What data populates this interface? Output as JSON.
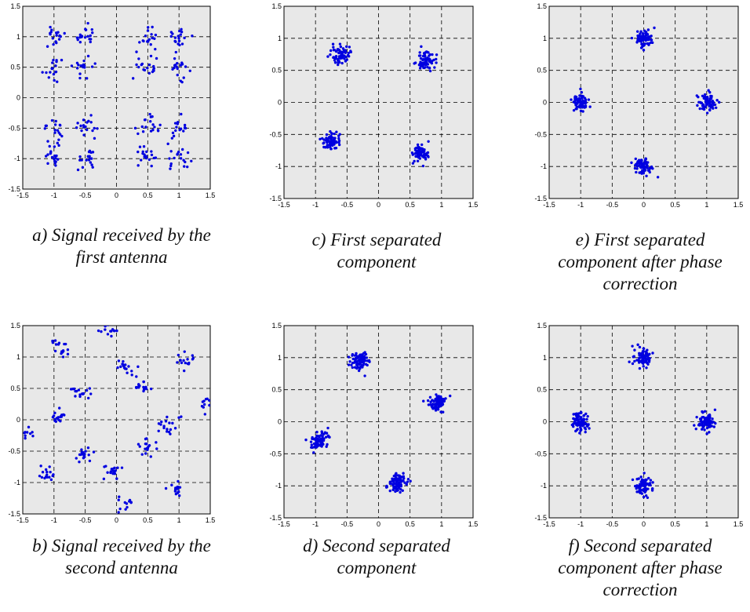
{
  "chart_data": [
    {
      "id": "a",
      "type": "scatter",
      "caption_lines": [
        "a) Signal received by the",
        "first antenna"
      ],
      "xlim": [
        -1.5,
        1.5
      ],
      "ylim": [
        -1.5,
        1.5
      ],
      "xticks": [
        "-1.5",
        "-1",
        "-0.5",
        "0",
        "0.5",
        "1",
        "1.5"
      ],
      "yticks": [
        "-1.5",
        "-1",
        "-0.5",
        "0",
        "0.5",
        "1",
        "1.5"
      ],
      "grid": true,
      "point_color": "#0000e0",
      "background": "#e8e8e8",
      "clusters": [
        {
          "cx": -1.0,
          "cy": 1.0,
          "n": 18,
          "sd": 0.09
        },
        {
          "cx": -0.5,
          "cy": 1.0,
          "n": 18,
          "sd": 0.09
        },
        {
          "cx": 0.5,
          "cy": 1.0,
          "n": 18,
          "sd": 0.09
        },
        {
          "cx": 1.0,
          "cy": 1.0,
          "n": 18,
          "sd": 0.09
        },
        {
          "cx": -1.0,
          "cy": 0.5,
          "n": 18,
          "sd": 0.09
        },
        {
          "cx": -0.5,
          "cy": 0.5,
          "n": 18,
          "sd": 0.09
        },
        {
          "cx": 0.5,
          "cy": 0.5,
          "n": 18,
          "sd": 0.09
        },
        {
          "cx": 1.0,
          "cy": 0.5,
          "n": 18,
          "sd": 0.09
        },
        {
          "cx": -1.0,
          "cy": -0.5,
          "n": 18,
          "sd": 0.09
        },
        {
          "cx": -0.5,
          "cy": -0.5,
          "n": 18,
          "sd": 0.09
        },
        {
          "cx": 0.5,
          "cy": -0.5,
          "n": 18,
          "sd": 0.09
        },
        {
          "cx": 1.0,
          "cy": -0.5,
          "n": 18,
          "sd": 0.09
        },
        {
          "cx": -1.0,
          "cy": -1.0,
          "n": 18,
          "sd": 0.09
        },
        {
          "cx": -0.5,
          "cy": -1.0,
          "n": 18,
          "sd": 0.09
        },
        {
          "cx": 0.5,
          "cy": -1.0,
          "n": 18,
          "sd": 0.09
        },
        {
          "cx": 1.0,
          "cy": -1.0,
          "n": 18,
          "sd": 0.09
        }
      ]
    },
    {
      "id": "c",
      "type": "scatter",
      "caption_lines": [
        "c) First separated",
        "component"
      ],
      "xlim": [
        -1.5,
        1.5
      ],
      "ylim": [
        -1.5,
        1.5
      ],
      "xticks": [
        "-1.5",
        "-1",
        "-0.5",
        "0",
        "0.5",
        "1",
        "1.5"
      ],
      "yticks": [
        "-1.5",
        "-1",
        "-0.5",
        "0",
        "0.5",
        "1",
        "1.5"
      ],
      "grid": true,
      "point_color": "#0000e0",
      "background": "#e8e8e8",
      "clusters": [
        {
          "cx": -0.6,
          "cy": 0.75,
          "n": 70,
          "sd": 0.07
        },
        {
          "cx": 0.75,
          "cy": 0.65,
          "n": 70,
          "sd": 0.07
        },
        {
          "cx": -0.75,
          "cy": -0.6,
          "n": 70,
          "sd": 0.07
        },
        {
          "cx": 0.65,
          "cy": -0.78,
          "n": 70,
          "sd": 0.07
        }
      ]
    },
    {
      "id": "e",
      "type": "scatter",
      "caption_lines": [
        "e) First separated",
        "component after phase",
        "correction"
      ],
      "xlim": [
        -1.5,
        1.5
      ],
      "ylim": [
        -1.5,
        1.5
      ],
      "xticks": [
        "-1.5",
        "-1",
        "-0.5",
        "0",
        "0.5",
        "1",
        "1.5"
      ],
      "yticks": [
        "-1.5",
        "-1",
        "-0.5",
        "0",
        "0.5",
        "1",
        "1.5"
      ],
      "grid": true,
      "point_color": "#0000e0",
      "background": "#e8e8e8",
      "clusters": [
        {
          "cx": 0.0,
          "cy": 1.0,
          "n": 70,
          "sd": 0.07
        },
        {
          "cx": -1.0,
          "cy": 0.0,
          "n": 70,
          "sd": 0.07
        },
        {
          "cx": 1.0,
          "cy": 0.0,
          "n": 70,
          "sd": 0.07
        },
        {
          "cx": 0.0,
          "cy": -1.0,
          "n": 70,
          "sd": 0.07
        }
      ]
    },
    {
      "id": "b",
      "type": "scatter",
      "caption_lines": [
        "b) Signal received by the",
        "second antenna"
      ],
      "xlim": [
        -1.5,
        1.5
      ],
      "ylim": [
        -1.5,
        1.5
      ],
      "xticks": [
        "-1.5",
        "-1",
        "-0.5",
        "0",
        "0.5",
        "1",
        "1.5"
      ],
      "yticks": [
        "-1.5",
        "-1",
        "-0.5",
        "0",
        "0.5",
        "1",
        "1.5"
      ],
      "grid": true,
      "point_color": "#0000e0",
      "background": "#e8e8e8",
      "clusters": [
        {
          "cx": -0.1,
          "cy": 1.45,
          "n": 16,
          "sd": 0.07
        },
        {
          "cx": -0.9,
          "cy": 1.15,
          "n": 18,
          "sd": 0.08
        },
        {
          "cx": 0.15,
          "cy": 0.8,
          "n": 18,
          "sd": 0.08
        },
        {
          "cx": 1.1,
          "cy": 0.95,
          "n": 16,
          "sd": 0.07
        },
        {
          "cx": -0.6,
          "cy": 0.45,
          "n": 16,
          "sd": 0.07
        },
        {
          "cx": 0.45,
          "cy": 0.5,
          "n": 16,
          "sd": 0.07
        },
        {
          "cx": 1.45,
          "cy": 0.25,
          "n": 14,
          "sd": 0.06
        },
        {
          "cx": -0.95,
          "cy": 0.05,
          "n": 18,
          "sd": 0.07
        },
        {
          "cx": 0.8,
          "cy": -0.1,
          "n": 18,
          "sd": 0.08
        },
        {
          "cx": -1.45,
          "cy": -0.25,
          "n": 12,
          "sd": 0.06
        },
        {
          "cx": -0.5,
          "cy": -0.55,
          "n": 18,
          "sd": 0.07
        },
        {
          "cx": 0.5,
          "cy": -0.45,
          "n": 18,
          "sd": 0.08
        },
        {
          "cx": -1.1,
          "cy": -0.85,
          "n": 16,
          "sd": 0.07
        },
        {
          "cx": -0.1,
          "cy": -0.8,
          "n": 18,
          "sd": 0.07
        },
        {
          "cx": 0.95,
          "cy": -1.1,
          "n": 16,
          "sd": 0.07
        },
        {
          "cx": 0.15,
          "cy": -1.4,
          "n": 14,
          "sd": 0.07
        }
      ]
    },
    {
      "id": "d",
      "type": "scatter",
      "caption_lines": [
        "d) Second separated",
        "component"
      ],
      "xlim": [
        -1.5,
        1.5
      ],
      "ylim": [
        -1.5,
        1.5
      ],
      "xticks": [
        "-1.5",
        "-1",
        "-0.5",
        "0",
        "0.5",
        "1",
        "1.5"
      ],
      "yticks": [
        "-1.5",
        "-1",
        "-0.5",
        "0",
        "0.5",
        "1",
        "1.5"
      ],
      "grid": true,
      "point_color": "#0000e0",
      "background": "#e8e8e8",
      "clusters": [
        {
          "cx": -0.3,
          "cy": 0.95,
          "n": 80,
          "sd": 0.07
        },
        {
          "cx": 0.95,
          "cy": 0.3,
          "n": 80,
          "sd": 0.07
        },
        {
          "cx": -0.95,
          "cy": -0.3,
          "n": 80,
          "sd": 0.07
        },
        {
          "cx": 0.3,
          "cy": -0.95,
          "n": 80,
          "sd": 0.07
        }
      ]
    },
    {
      "id": "f",
      "type": "scatter",
      "caption_lines": [
        "f) Second separated",
        "component after phase",
        "correction"
      ],
      "xlim": [
        -1.5,
        1.5
      ],
      "ylim": [
        -1.5,
        1.5
      ],
      "xticks": [
        "-1.5",
        "-1",
        "-0.5",
        "0",
        "0.5",
        "1",
        "1.5"
      ],
      "yticks": [
        "-1.5",
        "-1",
        "-0.5",
        "0",
        "0.5",
        "1",
        "1.5"
      ],
      "grid": true,
      "point_color": "#0000e0",
      "background": "#e8e8e8",
      "clusters": [
        {
          "cx": 0.0,
          "cy": 1.0,
          "n": 80,
          "sd": 0.07
        },
        {
          "cx": -1.0,
          "cy": 0.0,
          "n": 80,
          "sd": 0.07
        },
        {
          "cx": 1.0,
          "cy": 0.0,
          "n": 80,
          "sd": 0.07
        },
        {
          "cx": 0.0,
          "cy": -1.0,
          "n": 80,
          "sd": 0.07
        }
      ]
    }
  ]
}
